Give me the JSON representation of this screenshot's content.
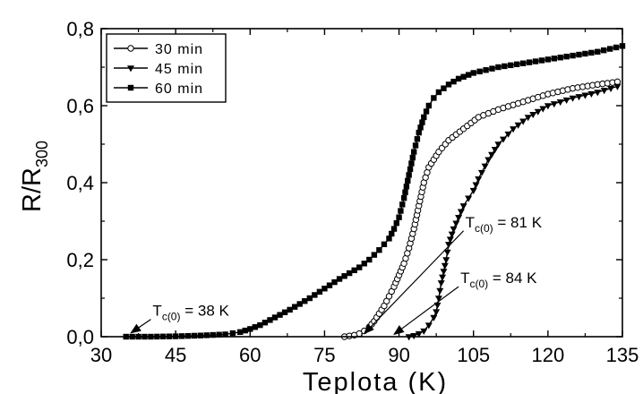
{
  "chart_data": {
    "type": "scatter",
    "xlabel": "Teplota (K)",
    "ylabel": {
      "base": "R/R",
      "sub": "300"
    },
    "xlim": [
      30,
      135
    ],
    "ylim": [
      0,
      0.8
    ],
    "x_ticks": [
      30,
      45,
      60,
      75,
      90,
      105,
      120,
      135
    ],
    "x_tick_labels": [
      "30",
      "45",
      "60",
      "75",
      "90",
      "105",
      "120",
      "135"
    ],
    "y_ticks": [
      0,
      0.2,
      0.4,
      0.6,
      0.8
    ],
    "y_tick_labels": [
      "0,0",
      "0,2",
      "0,4",
      "0,6",
      "0,8"
    ],
    "grid": false,
    "legend_position": "top-left",
    "series": [
      {
        "name": "30 min",
        "marker": "open-circle",
        "color": "#000000",
        "x": [
          79,
          80,
          81,
          82,
          83,
          84,
          85,
          86,
          87,
          88,
          89,
          90,
          91,
          92,
          93,
          94,
          95,
          96,
          98,
          100,
          103,
          106,
          110,
          115,
          120,
          125,
          130,
          133,
          134
        ],
        "y": [
          0.0,
          0.002,
          0.004,
          0.008,
          0.015,
          0.025,
          0.04,
          0.06,
          0.08,
          0.105,
          0.13,
          0.16,
          0.19,
          0.23,
          0.28,
          0.34,
          0.4,
          0.44,
          0.48,
          0.51,
          0.54,
          0.57,
          0.59,
          0.61,
          0.63,
          0.645,
          0.655,
          0.66,
          0.662
        ]
      },
      {
        "name": "45 min",
        "marker": "filled-triangle-down",
        "color": "#000000",
        "x": [
          92,
          93,
          94,
          95,
          96,
          97,
          97.5,
          98,
          98.5,
          99,
          99.5,
          100,
          101,
          102,
          103,
          104,
          105,
          106,
          108,
          110,
          113,
          116,
          120,
          125,
          130,
          134
        ],
        "y": [
          0.0,
          0.003,
          0.008,
          0.015,
          0.03,
          0.05,
          0.065,
          0.1,
          0.14,
          0.17,
          0.2,
          0.24,
          0.28,
          0.31,
          0.34,
          0.36,
          0.38,
          0.41,
          0.46,
          0.5,
          0.54,
          0.57,
          0.6,
          0.62,
          0.635,
          0.65
        ]
      },
      {
        "name": "60 min",
        "marker": "filled-square",
        "color": "#000000",
        "x": [
          35,
          40,
          45,
          50,
          55,
          58,
          60,
          62,
          65,
          68,
          70,
          72,
          75,
          78,
          80,
          82,
          84,
          86,
          88,
          89,
          90,
          91,
          92,
          93,
          94,
          95,
          96,
          97,
          98,
          99,
          100,
          102,
          105,
          110,
          115,
          120,
          125,
          130,
          135
        ],
        "y": [
          0.0,
          0.0,
          0.001,
          0.003,
          0.006,
          0.012,
          0.02,
          0.03,
          0.05,
          0.07,
          0.085,
          0.1,
          0.125,
          0.15,
          0.165,
          0.18,
          0.2,
          0.225,
          0.255,
          0.28,
          0.31,
          0.36,
          0.42,
          0.48,
          0.53,
          0.57,
          0.6,
          0.62,
          0.635,
          0.645,
          0.655,
          0.67,
          0.685,
          0.7,
          0.71,
          0.72,
          0.73,
          0.74,
          0.755
        ]
      }
    ],
    "annotations": [
      {
        "id": "tc38",
        "main": "T",
        "sub": "c(0)",
        "rest": " = 38 K",
        "arrow_from": [
          36,
          0.01
        ],
        "arrow_to": [
          40,
          0.045
        ]
      },
      {
        "id": "tc81",
        "main": "T",
        "sub": "c(0)",
        "rest": " = 81 K",
        "arrow_from": [
          83,
          0.008
        ],
        "arrow_to": [
          103,
          0.275
        ]
      },
      {
        "id": "tc84",
        "main": "T",
        "sub": "c(0)",
        "rest": " = 84 K",
        "arrow_from": [
          89,
          0.006
        ],
        "arrow_to": [
          102,
          0.13
        ]
      }
    ]
  }
}
